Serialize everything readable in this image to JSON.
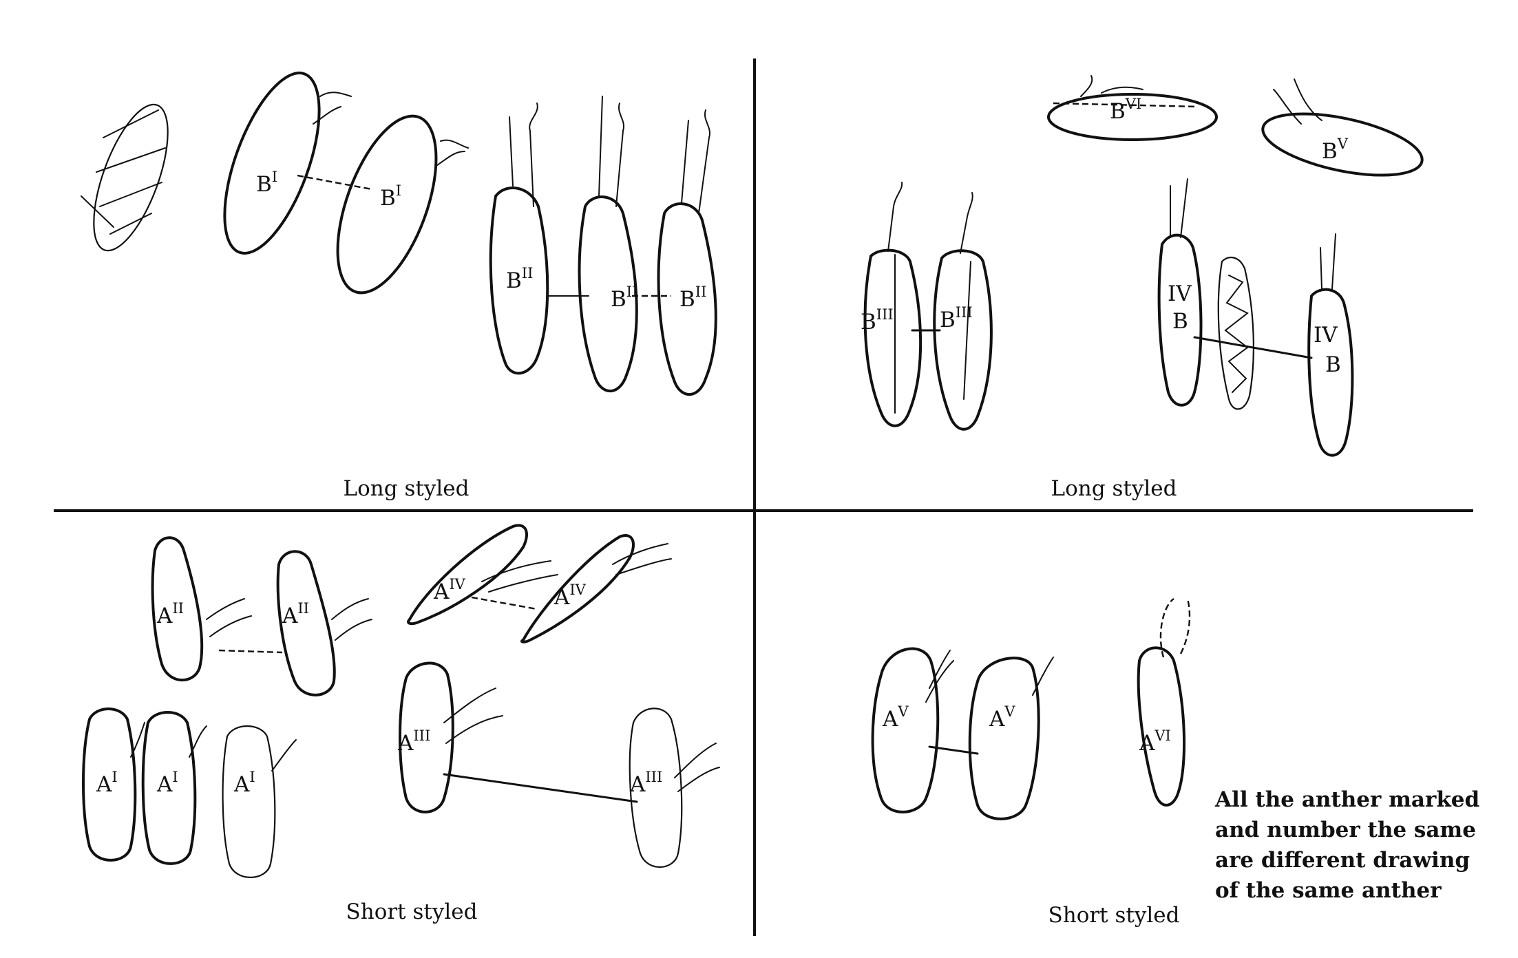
{
  "panels": {
    "top_left": {
      "caption": "Long styled",
      "anthers": [
        {
          "base": "B",
          "sup": "I"
        },
        {
          "base": "B",
          "sup": "I"
        },
        {
          "base": "B",
          "sup": "II"
        },
        {
          "base": "B",
          "sup": "II"
        },
        {
          "base": "B",
          "sup": "II"
        }
      ]
    },
    "top_right": {
      "caption": "Long styled",
      "anthers": [
        {
          "base": "B",
          "sup": "VI"
        },
        {
          "base": "B",
          "sup": "V"
        },
        {
          "base": "B",
          "sup": "III"
        },
        {
          "base": "B",
          "sup": "III"
        },
        {
          "line1": "IV",
          "line2": "B"
        },
        {
          "line1": "IV",
          "line2": "B"
        }
      ]
    },
    "bottom_left": {
      "caption": "Short styled",
      "anthers": [
        {
          "base": "A",
          "sup": "II"
        },
        {
          "base": "A",
          "sup": "II"
        },
        {
          "base": "A",
          "sup": "IV"
        },
        {
          "base": "A",
          "sup": "IV"
        },
        {
          "base": "A",
          "sup": "I"
        },
        {
          "base": "A",
          "sup": "I"
        },
        {
          "base": "A",
          "sup": "I"
        },
        {
          "base": "A",
          "sup": "III"
        },
        {
          "base": "A",
          "sup": "III"
        }
      ]
    },
    "bottom_right": {
      "caption": "Short styled",
      "anthers": [
        {
          "base": "A",
          "sup": "V"
        },
        {
          "base": "A",
          "sup": "V"
        },
        {
          "base": "A",
          "sup": "VI"
        }
      ],
      "note": [
        "All the anther marked",
        "and number the same",
        "are different drawing",
        "of the same anther"
      ]
    }
  }
}
